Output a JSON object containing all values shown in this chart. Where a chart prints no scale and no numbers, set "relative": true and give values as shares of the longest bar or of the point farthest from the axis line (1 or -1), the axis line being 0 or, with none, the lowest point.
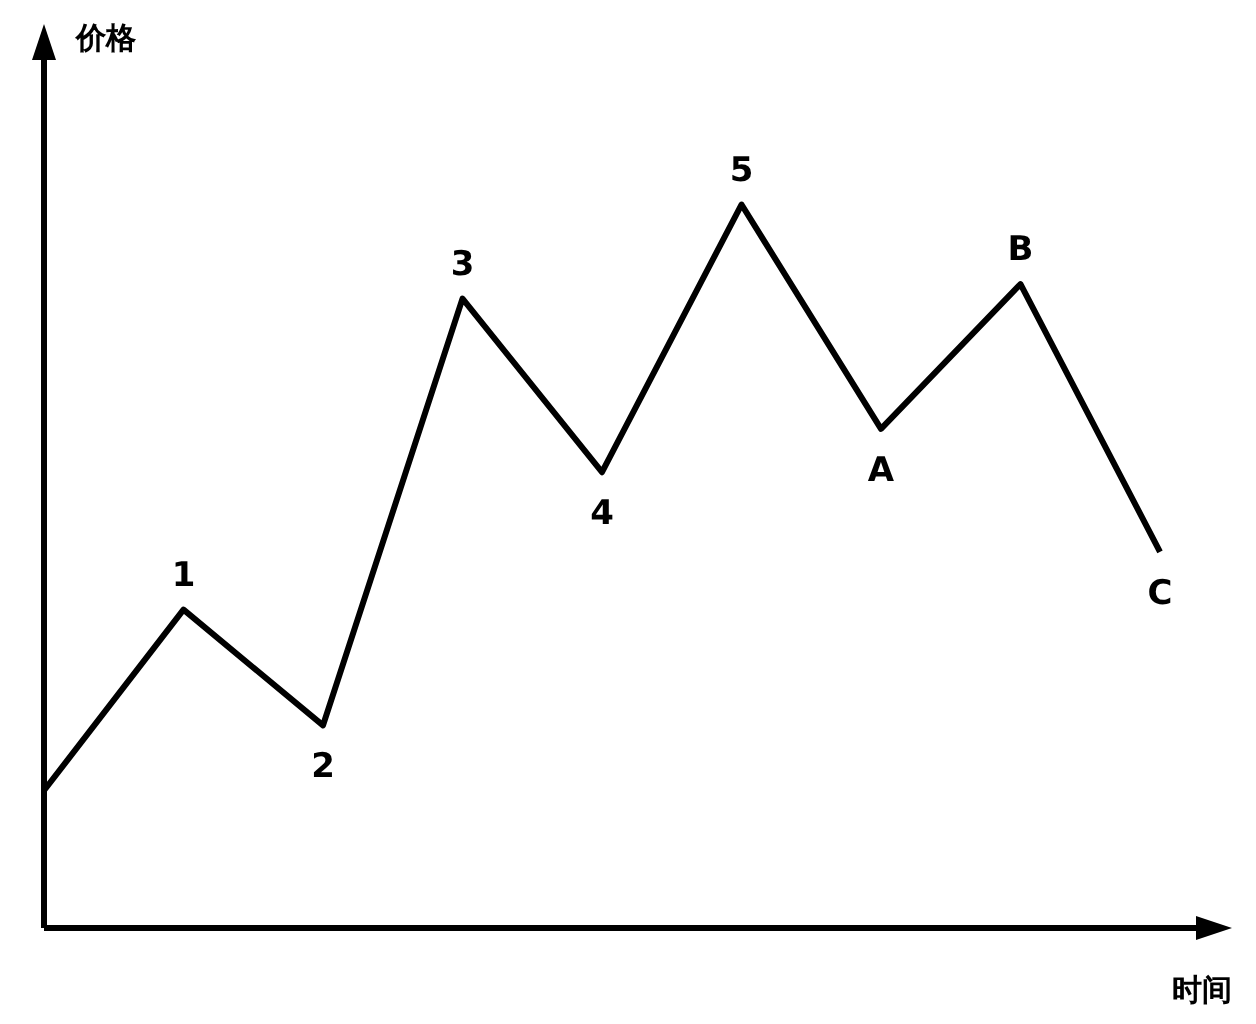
{
  "chart_data": {
    "type": "line",
    "relative": true,
    "xlabel": "时间",
    "ylabel": "价格",
    "categories": [
      null,
      null,
      null,
      null,
      null,
      null,
      null,
      null,
      null
    ],
    "series": [
      {
        "color": "#000000",
        "values": [
          0.19,
          0.44,
          0.28,
          0.87,
          0.63,
          1,
          0.69,
          0.89,
          0.52
        ]
      }
    ],
    "annotations": [
      {
        "text": "1",
        "y": 0.44
      },
      {
        "text": "2",
        "y": 0.28
      },
      {
        "text": "3",
        "y": 0.87
      },
      {
        "text": "4",
        "y": 0.63
      },
      {
        "text": "5",
        "y": 1
      },
      {
        "text": "A",
        "y": 0.69
      },
      {
        "text": "B",
        "y": 0.89
      },
      {
        "text": "C",
        "y": 0.52
      }
    ]
  }
}
